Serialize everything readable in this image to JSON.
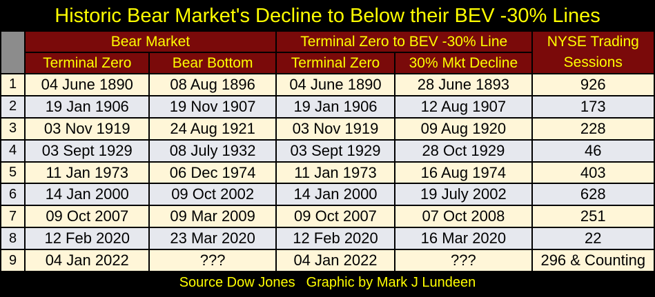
{
  "title": "Historic Bear Market's Decline to Below their BEV -30% Lines",
  "header": {
    "groups": [
      "Bear Market",
      "Terminal Zero to BEV -30% Line",
      "NYSE Trading Sessions"
    ],
    "columns": [
      "Terminal Zero",
      "Bear Bottom",
      "Terminal Zero",
      "30% Mkt Decline"
    ]
  },
  "table": {
    "rows": [
      [
        "1",
        "04 June 1890",
        "08 Aug 1896",
        "04 June 1890",
        "28 June 1893",
        "926"
      ],
      [
        "2",
        "19 Jan 1906",
        "19 Nov 1907",
        "19 Jan 1906",
        "12 Aug 1907",
        "173"
      ],
      [
        "3",
        "03 Nov 1919",
        "24 Aug 1921",
        "03 Nov 1919",
        "09 Aug 1920",
        "228"
      ],
      [
        "4",
        "03 Sept 1929",
        "08 July 1932",
        "03 Sept 1929",
        "28 Oct 1929",
        "46"
      ],
      [
        "5",
        "11 Jan 1973",
        "06 Dec 1974",
        "11 Jan 1973",
        "16 Aug 1974",
        "403"
      ],
      [
        "6",
        "14 Jan 2000",
        "09 Oct 2002",
        "14 Jan 2000",
        "19 July 2002",
        "628"
      ],
      [
        "7",
        "09 Oct 2007",
        "09 Mar 2009",
        "09 Oct 2007",
        "07 Oct 2008",
        "251"
      ],
      [
        "8",
        "12 Feb 2020",
        "23 Mar 2020",
        "12 Feb 2020",
        "16 Mar 2020",
        "22"
      ],
      [
        "9",
        "04 Jan 2022",
        "???",
        "04 Jan 2022",
        "???",
        "296 & Counting"
      ]
    ]
  },
  "footer": {
    "source": "Source Dow Jones",
    "credit": "Graphic by Mark J Lundeen"
  }
}
